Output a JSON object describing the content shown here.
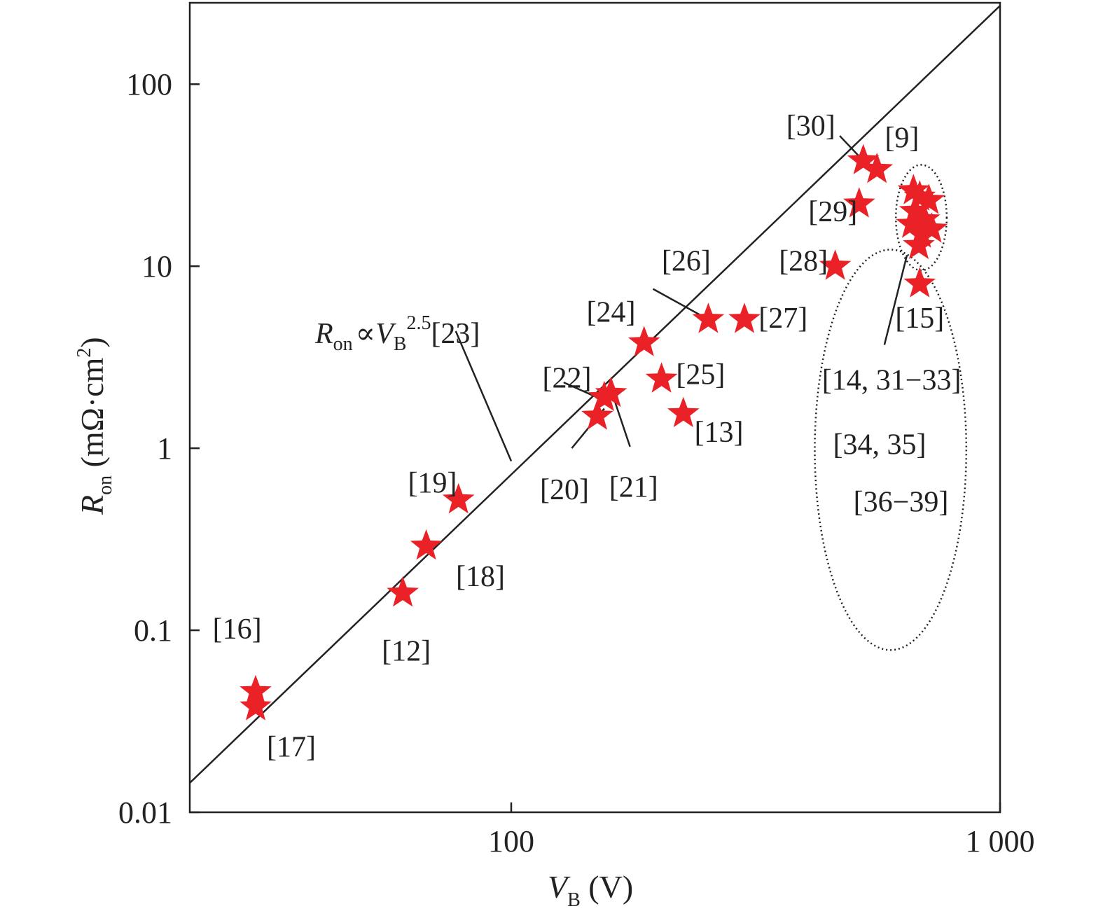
{
  "chart_data": {
    "type": "scatter",
    "x_scale": "log",
    "y_scale": "log",
    "xlim": [
      22,
      1000
    ],
    "ylim": [
      0.01,
      280
    ],
    "grid": false,
    "legend": "none",
    "xaxis": {
      "title_main": "V",
      "title_sub": "B",
      "title_unit": " (V)",
      "ticks": [
        {
          "value": 100,
          "label": "100"
        },
        {
          "value": 1000,
          "label": "1 000"
        }
      ]
    },
    "yaxis": {
      "title_main": "R",
      "title_sub": "on",
      "title_unit": " (mΩ·cm",
      "title_sup": "2",
      "title_close": ")",
      "ticks": [
        {
          "value": 0.01,
          "label": "0.01"
        },
        {
          "value": 0.1,
          "label": "0.1"
        },
        {
          "value": 1,
          "label": "1"
        },
        {
          "value": 10,
          "label": "10"
        },
        {
          "value": 100,
          "label": "100"
        }
      ]
    },
    "limit_line": {
      "points": [
        [
          22,
          0.0145
        ],
        [
          1000,
          270
        ]
      ],
      "label_main": "R",
      "label_sub1": "on",
      "label_prop": "∝",
      "label_v": "V",
      "label_sub2": "B",
      "label_sup": "2.5",
      "label_ref": "[23]"
    },
    "points": [
      {
        "x": 30,
        "y": 0.046,
        "ref": "[16]"
      },
      {
        "x": 30,
        "y": 0.038,
        "ref": "[17]"
      },
      {
        "x": 60,
        "y": 0.16,
        "ref": "[12]"
      },
      {
        "x": 67,
        "y": 0.29,
        "ref": "[18]"
      },
      {
        "x": 78,
        "y": 0.52,
        "ref": "[19]"
      },
      {
        "x": 150,
        "y": 1.5,
        "ref": "[20]"
      },
      {
        "x": 155,
        "y": 1.9,
        "ref": "[22]"
      },
      {
        "x": 160,
        "y": 2.0,
        "ref": "[21]"
      },
      {
        "x": 187,
        "y": 3.8,
        "ref": "[24]"
      },
      {
        "x": 203,
        "y": 2.4,
        "ref": "[25]"
      },
      {
        "x": 225,
        "y": 1.55,
        "ref": "[13]"
      },
      {
        "x": 253,
        "y": 5.1,
        "ref": "[26]"
      },
      {
        "x": 300,
        "y": 5.1,
        "ref": "[27]"
      },
      {
        "x": 460,
        "y": 10,
        "ref": "[28]"
      },
      {
        "x": 515,
        "y": 22,
        "ref": "[29]"
      },
      {
        "x": 525,
        "y": 38,
        "ref": "[30]"
      },
      {
        "x": 560,
        "y": 34,
        "ref": "[9]"
      },
      {
        "x": 685,
        "y": 8,
        "ref": "[15]"
      },
      {
        "x": 665,
        "y": 26,
        "ref": "[14, 31−33], [34, 35], [36−39]"
      },
      {
        "x": 685,
        "y": 24,
        "ref": "[14, 31−33], [34, 35], [36−39]"
      },
      {
        "x": 715,
        "y": 23,
        "ref": "[14, 31−33], [34, 35], [36−39]"
      },
      {
        "x": 670,
        "y": 20,
        "ref": "[14, 31−33], [34, 35], [36−39]"
      },
      {
        "x": 700,
        "y": 18,
        "ref": "[14, 31−33], [34, 35], [36−39]"
      },
      {
        "x": 660,
        "y": 17,
        "ref": "[14, 31−33], [34, 35], [36−39]"
      },
      {
        "x": 725,
        "y": 16,
        "ref": "[14, 31−33], [34, 35], [36−39]"
      },
      {
        "x": 690,
        "y": 15,
        "ref": "[14, 31−33], [34, 35], [36−39]"
      },
      {
        "x": 682,
        "y": 13,
        "ref": "[14, 31−33], [34, 35], [36−39]"
      }
    ],
    "annotations": [
      {
        "text": "[16]",
        "x": 27.5,
        "y": 0.098
      },
      {
        "text": "[17]",
        "x": 35.5,
        "y": 0.022
      },
      {
        "text": "[12]",
        "x": 61,
        "y": 0.074
      },
      {
        "text": "[18]",
        "x": 86.5,
        "y": 0.19
      },
      {
        "text": "[19]",
        "x": 69,
        "y": 0.62
      },
      {
        "text": "[20]",
        "x": 128.5,
        "y": 0.57
      },
      {
        "text": "[21]",
        "x": 178,
        "y": 0.59
      },
      {
        "text": "[22]",
        "x": 130,
        "y": 2.35
      },
      {
        "text": "[24]",
        "x": 160,
        "y": 5.4
      },
      {
        "text": "[25]",
        "x": 244,
        "y": 2.45
      },
      {
        "text": "[13]",
        "x": 266,
        "y": 1.18
      },
      {
        "text": "[26]",
        "x": 228,
        "y": 10.3
      },
      {
        "text": "[27]",
        "x": 360,
        "y": 5.0
      },
      {
        "text": "[28]",
        "x": 396,
        "y": 10.3
      },
      {
        "text": "[29]",
        "x": 455,
        "y": 19.2
      },
      {
        "text": "[30]",
        "x": 410,
        "y": 57
      },
      {
        "text": "[9]",
        "x": 630,
        "y": 49
      },
      {
        "text": "[15]",
        "x": 685,
        "y": 5.0
      },
      {
        "text": "[14, 31−33]",
        "x": 600,
        "y": 2.28
      },
      {
        "text": "[34, 35]",
        "x": 567,
        "y": 1.01
      },
      {
        "text": "[36−39]",
        "x": 627,
        "y": 0.49
      }
    ],
    "leaders": [
      {
        "from": [
          470,
          52
        ],
        "to": [
          525,
          38
        ]
      },
      {
        "from": [
          195,
          7.5
        ],
        "to": [
          253,
          5.1
        ]
      },
      {
        "from": [
          128,
          2.3
        ],
        "to": [
          150,
          1.9
        ]
      },
      {
        "from": [
          155,
          1.65
        ],
        "to": [
          133,
          1.0
        ]
      },
      {
        "from": [
          163,
          1.8
        ],
        "to": [
          175,
          1.02
        ]
      },
      {
        "from": [
          77,
          4.4
        ],
        "to": [
          100,
          0.85
        ]
      },
      {
        "from": [
          580,
          3.7
        ],
        "to": [
          645,
          11.5
        ]
      }
    ],
    "ellipses": [
      {
        "cx": 690,
        "cy": 18.5,
        "rx_dec": 0.052,
        "ry_dec": 0.29
      },
      {
        "cx": 597,
        "cy": 0.98,
        "rx_dec": 0.155,
        "ry_dec": 1.1
      }
    ]
  }
}
